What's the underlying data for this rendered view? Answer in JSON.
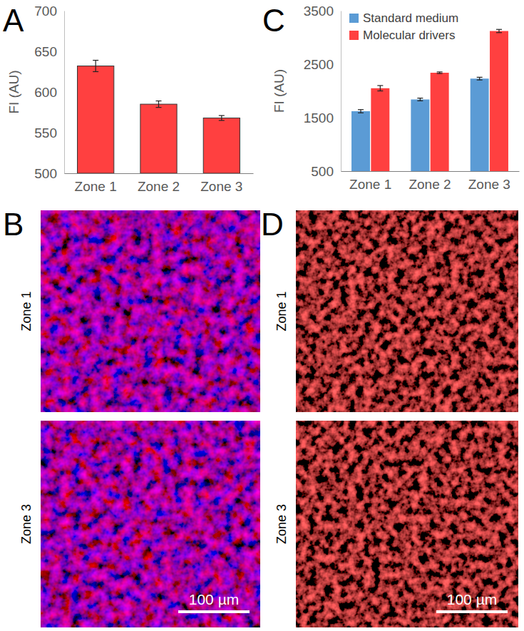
{
  "chart_data": [
    {
      "panel": "A",
      "type": "bar",
      "y_label": "FI (AU)",
      "categories": [
        "Zone 1",
        "Zone 2",
        "Zone 3"
      ],
      "values": [
        632,
        585,
        568
      ],
      "errors": [
        7,
        4,
        3
      ],
      "color": "#ff4040",
      "ylim": [
        500,
        700
      ],
      "yticks": [
        500,
        550,
        600,
        650,
        700
      ]
    },
    {
      "panel": "C",
      "type": "bar",
      "y_label": "FI (AU)",
      "categories": [
        "Zone 1",
        "Zone 2",
        "Zone 3"
      ],
      "series": [
        {
          "name": "Standard medium",
          "color": "#5b9bd5",
          "values": [
            1620,
            1840,
            2230
          ],
          "errors": [
            30,
            25,
            25
          ]
        },
        {
          "name": "Molecular drivers",
          "color": "#ff4040",
          "values": [
            2050,
            2340,
            3120
          ],
          "errors": [
            50,
            15,
            30
          ]
        }
      ],
      "ylim": [
        500,
        3500
      ],
      "yticks": [
        500,
        1500,
        2500,
        3500
      ],
      "legend": "upper left"
    }
  ],
  "image_panels": [
    {
      "panel": "B",
      "zones": [
        "Zone 1",
        "Zone 3"
      ],
      "scale_bar": "100 µm"
    },
    {
      "panel": "D",
      "zones": [
        "Zone 1",
        "Zone 3"
      ],
      "scale_bar": "100 µm"
    }
  ]
}
